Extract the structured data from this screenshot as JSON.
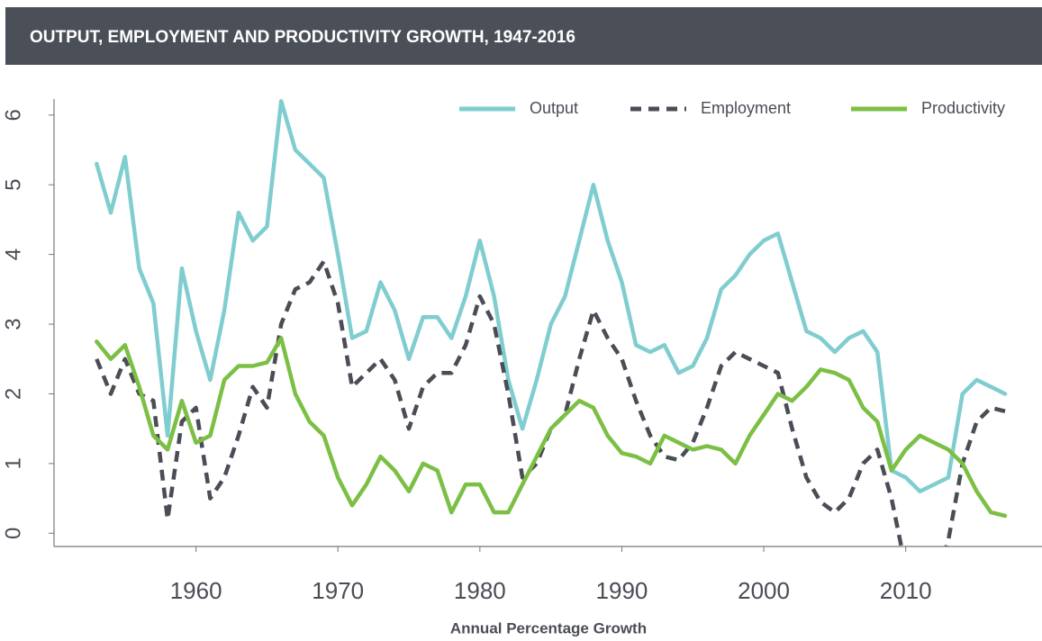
{
  "chart_data": {
    "type": "line",
    "title": "OUTPUT, EMPLOYMENT AND PRODUCTIVITY GROWTH, 1947-2016",
    "x_label": "Annual Percentage Growth",
    "x": [
      1953,
      1954,
      1955,
      1956,
      1957,
      1958,
      1959,
      1960,
      1961,
      1962,
      1963,
      1964,
      1965,
      1966,
      1967,
      1968,
      1969,
      1970,
      1971,
      1972,
      1973,
      1974,
      1975,
      1976,
      1977,
      1978,
      1979,
      1980,
      1981,
      1982,
      1983,
      1984,
      1985,
      1986,
      1987,
      1988,
      1989,
      1990,
      1991,
      1992,
      1993,
      1994,
      1995,
      1996,
      1997,
      1998,
      1999,
      2000,
      2001,
      2002,
      2003,
      2004,
      2005,
      2006,
      2007,
      2008,
      2009,
      2010,
      2011,
      2012,
      2013,
      2014,
      2015,
      2016,
      2017
    ],
    "series": [
      {
        "name": "Output",
        "color": "#80cdd0",
        "dashed": false,
        "values": [
          5.3,
          4.6,
          5.4,
          3.8,
          3.3,
          1.4,
          3.8,
          2.9,
          2.2,
          3.2,
          4.6,
          4.2,
          4.4,
          6.2,
          5.5,
          5.3,
          5.1,
          4.0,
          2.8,
          2.9,
          3.6,
          3.2,
          2.5,
          3.1,
          3.1,
          2.8,
          3.4,
          4.2,
          3.4,
          2.2,
          1.5,
          2.2,
          3.0,
          3.4,
          4.2,
          5.0,
          4.2,
          3.6,
          2.7,
          2.6,
          2.7,
          2.3,
          2.4,
          2.8,
          3.5,
          3.7,
          4.0,
          4.2,
          4.3,
          3.6,
          2.9,
          2.8,
          2.6,
          2.8,
          2.9,
          2.6,
          0.9,
          0.8,
          0.6,
          0.7,
          0.8,
          2.0,
          2.2,
          2.1,
          2.0
        ]
      },
      {
        "name": "Employment",
        "color": "#4a4d55",
        "dashed": true,
        "values": [
          2.5,
          2.0,
          2.5,
          2.0,
          1.9,
          0.2,
          1.6,
          1.8,
          0.5,
          0.8,
          1.4,
          2.1,
          1.8,
          3.0,
          3.5,
          3.6,
          3.9,
          3.3,
          2.1,
          2.3,
          2.5,
          2.2,
          1.5,
          2.1,
          2.3,
          2.3,
          2.7,
          3.4,
          3.0,
          2.0,
          0.8,
          1.0,
          1.5,
          1.7,
          2.5,
          3.2,
          2.8,
          2.5,
          1.9,
          1.4,
          1.1,
          1.05,
          1.3,
          1.8,
          2.4,
          2.6,
          2.5,
          2.4,
          2.3,
          1.5,
          0.8,
          0.45,
          0.3,
          0.5,
          1.0,
          1.2,
          0.5,
          -0.5,
          -1.0,
          -0.8,
          -0.1,
          1.0,
          1.6,
          1.8,
          1.75
        ]
      },
      {
        "name": "Productivity",
        "color": "#7bbf44",
        "dashed": false,
        "values": [
          2.75,
          2.5,
          2.7,
          2.1,
          1.4,
          1.2,
          1.9,
          1.3,
          1.4,
          2.2,
          2.4,
          2.4,
          2.45,
          2.8,
          2.0,
          1.6,
          1.4,
          0.8,
          0.4,
          0.7,
          1.1,
          0.9,
          0.6,
          1.0,
          0.9,
          0.3,
          0.7,
          0.7,
          0.3,
          0.3,
          0.7,
          1.1,
          1.5,
          1.7,
          1.9,
          1.8,
          1.4,
          1.15,
          1.1,
          1.0,
          1.4,
          1.3,
          1.2,
          1.25,
          1.2,
          1.0,
          1.4,
          1.7,
          2.0,
          1.9,
          2.1,
          2.35,
          2.3,
          2.2,
          1.8,
          1.6,
          0.9,
          1.2,
          1.4,
          1.3,
          1.2,
          1.0,
          0.6,
          0.3,
          0.25
        ]
      }
    ],
    "xlim": [
      1950,
      2019.6
    ],
    "xticks": [
      1960,
      1970,
      1980,
      1990,
      2000,
      2010
    ],
    "ylim": [
      -0.19,
      6.23
    ],
    "yticks": [
      0,
      1,
      2,
      3,
      4,
      5,
      6
    ],
    "legend": "top-right",
    "grid": false
  }
}
